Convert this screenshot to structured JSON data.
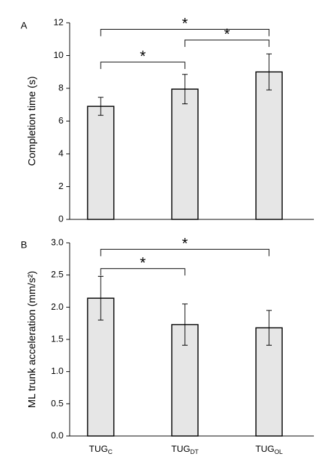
{
  "chart_data": [
    {
      "type": "bar",
      "panel_label": "A",
      "categories": [
        "TUGC",
        "TUGDT",
        "TUGOL"
      ],
      "values": [
        6.9,
        7.95,
        9.0
      ],
      "errors": [
        0.55,
        0.9,
        1.1
      ],
      "ylabel": "Completion time (s)",
      "ylim": [
        0,
        12
      ],
      "yticks": [
        "0",
        "2",
        "4",
        "6",
        "8",
        "10",
        "12"
      ],
      "significance": [
        {
          "from": 0,
          "to": 1,
          "y": 9.6,
          "label": "*"
        },
        {
          "from": 1,
          "to": 2,
          "y": 10.95,
          "label": "*"
        },
        {
          "from": 0,
          "to": 2,
          "y": 11.6,
          "label": "*"
        }
      ],
      "bar_color": "#e6e6e6"
    },
    {
      "type": "bar",
      "panel_label": "B",
      "categories": [
        "TUGC",
        "TUGDT",
        "TUGOL"
      ],
      "values": [
        2.14,
        1.73,
        1.68
      ],
      "errors": [
        0.34,
        0.32,
        0.27
      ],
      "ylabel": "ML trunk acceleration (mm/s²)",
      "ylim": [
        0,
        3
      ],
      "yticks": [
        "0.0",
        "0.5",
        "1.0",
        "1.5",
        "2.0",
        "2.5",
        "3.0"
      ],
      "significance": [
        {
          "from": 0,
          "to": 1,
          "y": 2.6,
          "label": "*"
        },
        {
          "from": 0,
          "to": 2,
          "y": 2.9,
          "label": "*"
        }
      ],
      "bar_color": "#e6e6e6"
    }
  ],
  "x_labels": [
    {
      "main": "TUG",
      "sub": "C"
    },
    {
      "main": "TUG",
      "sub": "DT"
    },
    {
      "main": "TUG",
      "sub": "OL"
    }
  ]
}
